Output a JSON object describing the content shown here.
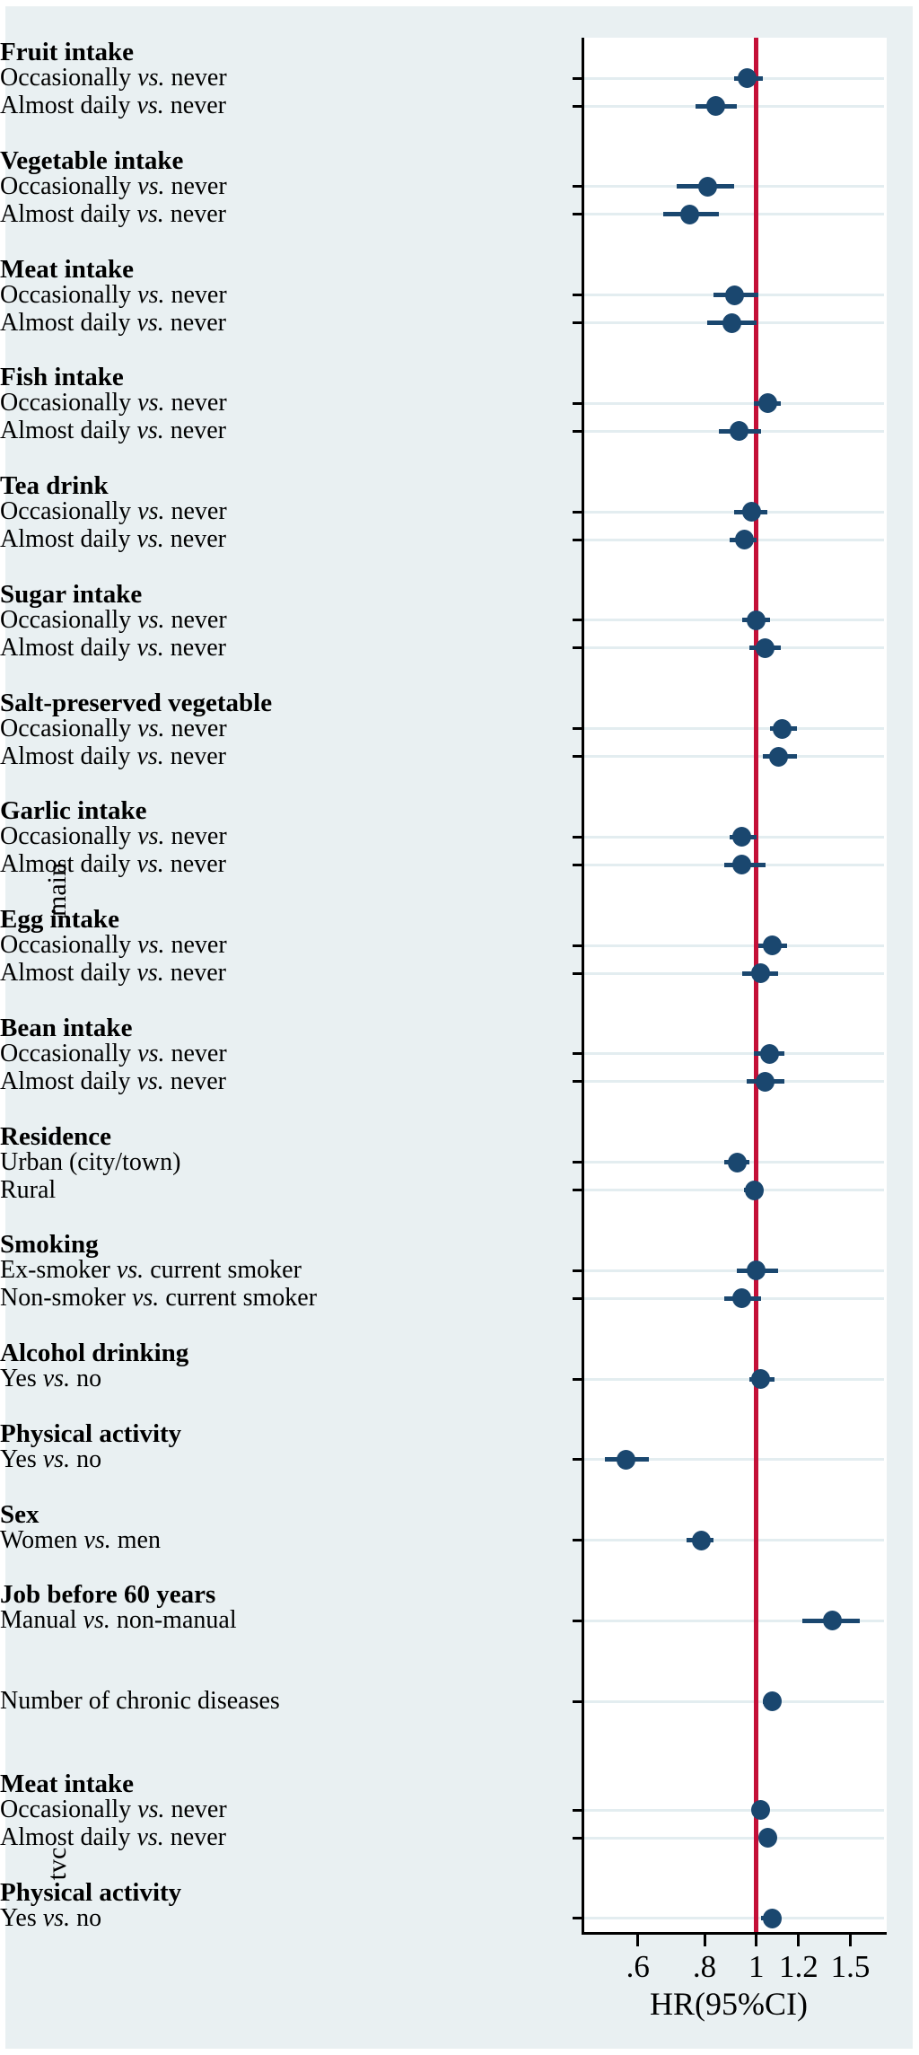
{
  "chart_data": {
    "type": "forest",
    "title": "",
    "x_axis": {
      "label": "HR(95%CI)",
      "scale": "log",
      "ticks": [
        0.6,
        0.8,
        1,
        1.2,
        1.5
      ],
      "tick_labels": [
        ".6",
        ".8",
        "1",
        "1.2",
        "1.5"
      ],
      "reference_line": 1
    },
    "marker_color": "#1a476f",
    "reference_line_color": "#c41038",
    "sections": [
      {
        "name": "main",
        "groups": [
          {
            "header": "Fruit intake",
            "rows": [
              {
                "label": "Occasionally vs. never",
                "hr": 0.96,
                "lo": 0.91,
                "hi": 1.03
              },
              {
                "label": "Almost daily vs. never",
                "hr": 0.84,
                "lo": 0.77,
                "hi": 0.92
              }
            ]
          },
          {
            "header": "Vegetable intake",
            "rows": [
              {
                "label": "Occasionally vs. never",
                "hr": 0.81,
                "lo": 0.71,
                "hi": 0.91
              },
              {
                "label": "Almost daily vs. never",
                "hr": 0.75,
                "lo": 0.67,
                "hi": 0.85
              }
            ]
          },
          {
            "header": "Meat intake",
            "rows": [
              {
                "label": "Occasionally vs. never",
                "hr": 0.91,
                "lo": 0.83,
                "hi": 1.01
              },
              {
                "label": "Almost daily vs. never",
                "hr": 0.9,
                "lo": 0.81,
                "hi": 1.0
              }
            ]
          },
          {
            "header": "Fish intake",
            "rows": [
              {
                "label": "Occasionally vs. never",
                "hr": 1.05,
                "lo": 0.99,
                "hi": 1.11
              },
              {
                "label": "Almost daily vs. never",
                "hr": 0.93,
                "lo": 0.85,
                "hi": 1.02
              }
            ]
          },
          {
            "header": "Tea drink",
            "rows": [
              {
                "label": "Occasionally vs. never",
                "hr": 0.98,
                "lo": 0.91,
                "hi": 1.05
              },
              {
                "label": "Almost daily vs. never",
                "hr": 0.95,
                "lo": 0.89,
                "hi": 1.0
              }
            ]
          },
          {
            "header": "Sugar intake",
            "rows": [
              {
                "label": "Occasionally vs. never",
                "hr": 1.0,
                "lo": 0.94,
                "hi": 1.06
              },
              {
                "label": "Almost daily vs. never",
                "hr": 1.04,
                "lo": 0.97,
                "hi": 1.11
              }
            ]
          },
          {
            "header": "Salt-preserved vegetable",
            "rows": [
              {
                "label": "Occasionally vs. never",
                "hr": 1.12,
                "lo": 1.06,
                "hi": 1.19
              },
              {
                "label": "Almost daily vs. never",
                "hr": 1.1,
                "lo": 1.03,
                "hi": 1.19
              }
            ]
          },
          {
            "header": "Garlic intake",
            "rows": [
              {
                "label": "Occasionally vs. never",
                "hr": 0.94,
                "lo": 0.89,
                "hi": 1.0
              },
              {
                "label": "Almost daily vs. never",
                "hr": 0.94,
                "lo": 0.87,
                "hi": 1.04
              }
            ]
          },
          {
            "header": "Egg intake",
            "rows": [
              {
                "label": "Occasionally vs. never",
                "hr": 1.07,
                "lo": 1.01,
                "hi": 1.14
              },
              {
                "label": "Almost daily vs. never",
                "hr": 1.02,
                "lo": 0.94,
                "hi": 1.1
              }
            ]
          },
          {
            "header": "Bean intake",
            "rows": [
              {
                "label": "Occasionally vs. never",
                "hr": 1.06,
                "lo": 0.99,
                "hi": 1.13
              },
              {
                "label": "Almost daily vs. never",
                "hr": 1.04,
                "lo": 0.96,
                "hi": 1.13
              }
            ]
          },
          {
            "header": "Residence",
            "rows": [
              {
                "label": "Urban (city/town)",
                "hr": 0.92,
                "lo": 0.87,
                "hi": 0.97
              },
              {
                "label": "Rural",
                "hr": 0.99,
                "lo": 0.95,
                "hi": 1.03
              }
            ]
          },
          {
            "header": "Smoking",
            "rows": [
              {
                "label": "Ex-smoker vs. current smoker",
                "hr": 1.0,
                "lo": 0.92,
                "hi": 1.1
              },
              {
                "label": "Non-smoker vs. current smoker",
                "hr": 0.94,
                "lo": 0.87,
                "hi": 1.02
              }
            ]
          },
          {
            "header": "Alcohol drinking",
            "rows": [
              {
                "label": "Yes vs. no",
                "hr": 1.02,
                "lo": 0.97,
                "hi": 1.08
              }
            ]
          },
          {
            "header": "Physical activity",
            "rows": [
              {
                "label": "Yes vs. no",
                "hr": 0.57,
                "lo": 0.52,
                "hi": 0.63
              }
            ]
          },
          {
            "header": "Sex",
            "rows": [
              {
                "label": "Women vs. men",
                "hr": 0.79,
                "lo": 0.74,
                "hi": 0.83
              }
            ]
          },
          {
            "header": "Job before 60 years",
            "rows": [
              {
                "label": "Manual vs. non-manual",
                "hr": 1.39,
                "lo": 1.22,
                "hi": 1.56
              }
            ]
          },
          {
            "header": null,
            "rows": [
              {
                "label": "Number of chronic diseases",
                "hr": 1.07,
                "lo": 1.03,
                "hi": 1.1
              }
            ]
          }
        ]
      },
      {
        "name": "tvc",
        "groups": [
          {
            "header": "Meat intake",
            "rows": [
              {
                "label": "Occasionally vs. never",
                "hr": 1.02,
                "lo": 1.0,
                "hi": 1.05
              },
              {
                "label": "Almost daily vs. never",
                "hr": 1.05,
                "lo": 1.02,
                "hi": 1.08
              }
            ]
          },
          {
            "header": "Physical activity",
            "rows": [
              {
                "label": "Yes vs. no",
                "hr": 1.07,
                "lo": 1.02,
                "hi": 1.11
              }
            ]
          }
        ]
      }
    ]
  }
}
